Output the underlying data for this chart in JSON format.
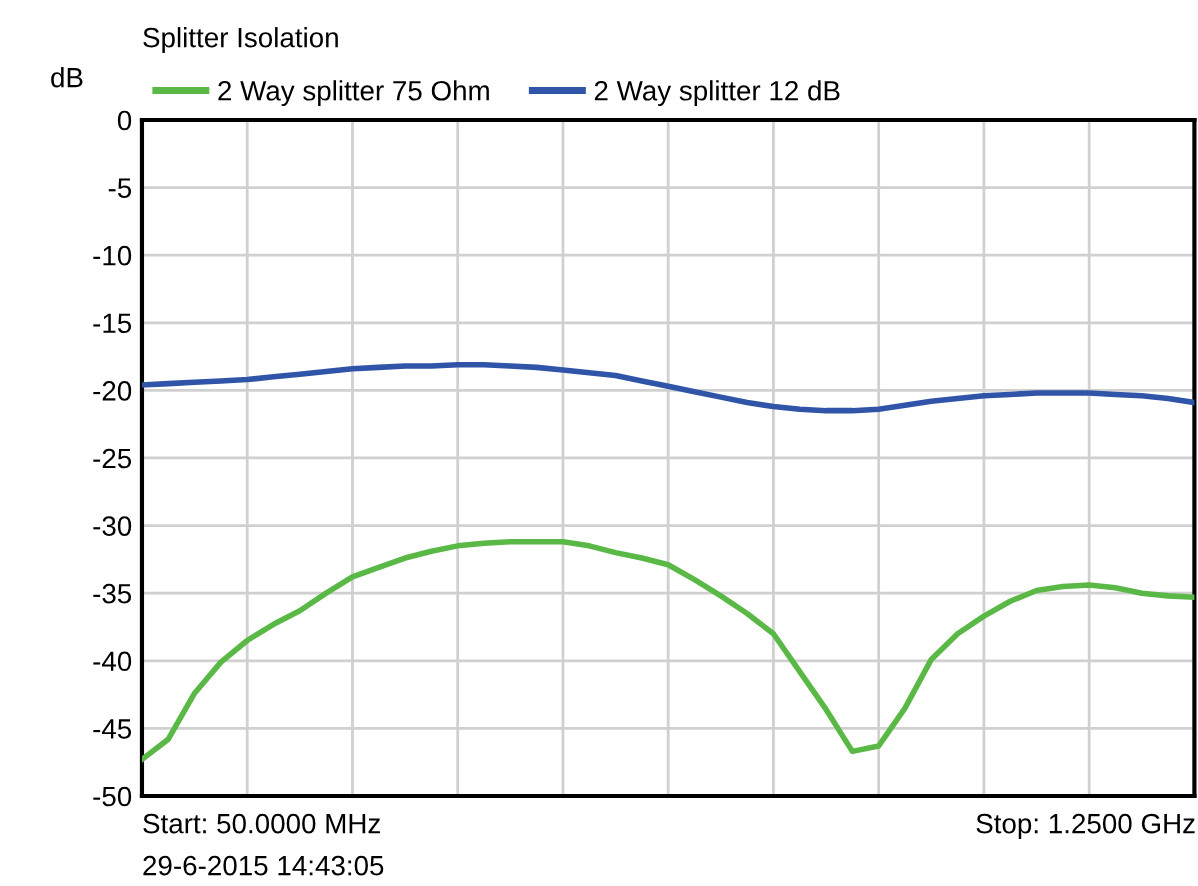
{
  "chart_data": {
    "type": "line",
    "title": "Splitter Isolation",
    "ylabel": "dB",
    "categories": [
      null,
      null,
      null,
      null,
      null,
      null,
      null,
      null,
      null,
      null,
      null,
      null,
      null,
      null,
      null,
      null,
      null,
      null,
      null,
      null,
      null,
      null,
      null,
      null,
      null,
      null,
      null,
      null,
      null,
      null,
      null,
      null,
      null,
      null,
      null,
      null,
      null,
      null,
      null,
      null,
      null
    ],
    "series": [
      {
        "name": "2 Way splitter 75 Ohm",
        "color": "#5ab946",
        "values": [
          -47.3,
          -45.8,
          -42.4,
          -40.1,
          -38.5,
          -37.3,
          -36.3,
          -35.0,
          -33.8,
          -33.1,
          -32.4,
          -31.9,
          -31.5,
          -31.3,
          -31.2,
          -31.2,
          -31.2,
          -31.5,
          -32.0,
          -32.4,
          -32.9,
          -34.0,
          -35.2,
          -36.5,
          -38.0,
          -40.8,
          -43.6,
          -46.7,
          -46.3,
          -43.5,
          -39.9,
          -38.0,
          -36.7,
          -35.6,
          -34.8,
          -34.5,
          -34.4,
          -34.6,
          -35.0,
          -35.2,
          -35.3
        ]
      },
      {
        "name": "2 Way splitter 12 dB",
        "color": "#2f54a8",
        "values": [
          -19.6,
          -19.5,
          -19.4,
          -19.3,
          -19.2,
          -19.0,
          -18.8,
          -18.6,
          -18.4,
          -18.3,
          -18.2,
          -18.2,
          -18.1,
          -18.1,
          -18.2,
          -18.3,
          -18.5,
          -18.7,
          -18.9,
          -19.3,
          -19.7,
          -20.1,
          -20.5,
          -20.9,
          -21.2,
          -21.4,
          -21.5,
          -21.5,
          -21.4,
          -21.1,
          -20.8,
          -20.6,
          -20.4,
          -20.3,
          -20.2,
          -20.2,
          -20.2,
          -20.3,
          -20.4,
          -20.6,
          -20.9
        ]
      }
    ],
    "ylim": [
      -50,
      0
    ],
    "yticks": [
      0,
      -5,
      -10,
      -15,
      -20,
      -25,
      -30,
      -35,
      -40,
      -45,
      -50
    ],
    "grid": true,
    "legend": "top",
    "marker": "none",
    "line_style": "solid",
    "annotations": [
      "Start: 50.0000 MHz",
      "Stop: 1.2500 GHz",
      "29-6-2015 14:43:05"
    ]
  }
}
